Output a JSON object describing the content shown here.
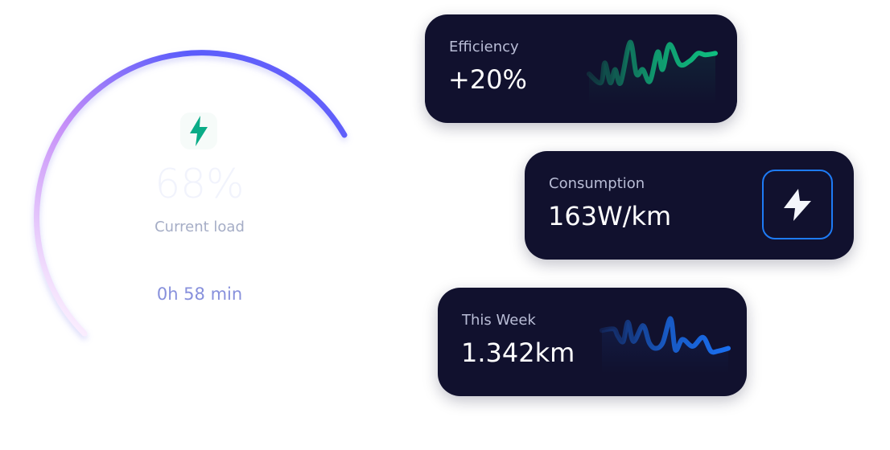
{
  "gauge": {
    "icon": "lightning-bolt-icon",
    "percent": "68%",
    "label": "Current load",
    "time": "0h 58 min",
    "load_fraction": 0.68,
    "colors": {
      "arc_start": "#fbeefe",
      "arc_mid": "#b98af7",
      "arc_end": "#5158fb",
      "bolt": "#0aac87"
    }
  },
  "cards": {
    "efficiency": {
      "label": "Efficiency",
      "value": "+20%",
      "sparkline_color": "#0fbf80",
      "sparkline": [
        37,
        25,
        52,
        25,
        43,
        25,
        80,
        37,
        43,
        27,
        67,
        43,
        77,
        50,
        55,
        65,
        63,
        65
      ]
    },
    "consumption": {
      "label": "Consumption",
      "value": "163W/km",
      "icon": "lightning-bolt-icon",
      "button_color": "#1e7bf5"
    },
    "this_week": {
      "label": "This Week",
      "value": "1.342km",
      "sparkline_color": "#1a6ff0",
      "sparkline": [
        58,
        60,
        50,
        42,
        70,
        42,
        65,
        40,
        32,
        40,
        75,
        30,
        45,
        35,
        48,
        28,
        28,
        32
      ]
    }
  }
}
